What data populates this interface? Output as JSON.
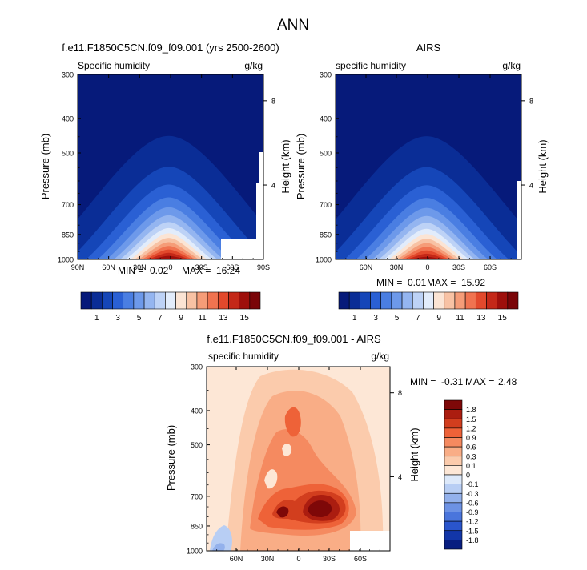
{
  "figure": {
    "title": "ANN"
  },
  "colors": {
    "absolute_scale": [
      "#061a7a",
      "#0a2d96",
      "#1546b8",
      "#2a60d4",
      "#4a7ee2",
      "#6d99ea",
      "#94b5f0",
      "#bdd2f6",
      "#e2ecfb",
      "#fbe4d4",
      "#f8c2a4",
      "#f59c78",
      "#f07350",
      "#e2492c",
      "#c42818",
      "#9e0f0b",
      "#7a0508"
    ],
    "difference_scale": [
      "#081e80",
      "#1236a8",
      "#2a55cc",
      "#4a75dc",
      "#6d92e4",
      "#93b1ec",
      "#b8cef4",
      "#dde9fa",
      "#fde7d6",
      "#fbcbac",
      "#f9ad86",
      "#f58a60",
      "#ee6238",
      "#d23e1e",
      "#ab1d10",
      "#7e0808"
    ]
  },
  "chart_data": [
    {
      "type": "heatmap",
      "title": "f.e11.F1850C5CN.f09_f09.001 (yrs 2500-2600)",
      "left_label": "Specific humidity",
      "units": "g/kg",
      "ylabel": "Pressure (mb)",
      "y2label": "Height (km)",
      "xticks": [
        "90N",
        "60N",
        "30N",
        "0",
        "30S",
        "60S",
        "90S"
      ],
      "yticks": [
        "300",
        "400",
        "500",
        "700",
        "850",
        "1000"
      ],
      "y2ticks": [
        "8",
        "4"
      ],
      "stats": {
        "min_label": "MIN =",
        "min": "0.02",
        "max_label": "MAX =",
        "max": "16.24"
      },
      "peak": 16.24,
      "colorbar": {
        "levels": [
          "1",
          "3",
          "5",
          "7",
          "9",
          "11",
          "13",
          "15"
        ]
      }
    },
    {
      "type": "heatmap",
      "title": "AIRS",
      "left_label": "specific humidity",
      "units": "g/kg",
      "ylabel": "Pressure (mb)",
      "y2label": "Height (km)",
      "xticks": [
        "60N",
        "30N",
        "0",
        "30S",
        "60S"
      ],
      "yticks": [
        "300",
        "400",
        "500",
        "700",
        "850",
        "1000"
      ],
      "y2ticks": [
        "8",
        "4"
      ],
      "stats": {
        "min_label": "MIN =",
        "min": "0.01",
        "max_label": "MAX =",
        "max": "15.92"
      },
      "peak": 15.92,
      "colorbar": {
        "levels": [
          "1",
          "3",
          "5",
          "7",
          "9",
          "11",
          "13",
          "15"
        ]
      }
    },
    {
      "type": "heatmap",
      "title": "f.e11.F1850C5CN.f09_f09.001 - AIRS",
      "left_label": "specific humidity",
      "units": "g/kg",
      "ylabel": "Pressure (mb)",
      "y2label": "Height (km)",
      "xticks": [
        "60N",
        "30N",
        "0",
        "30S",
        "60S"
      ],
      "yticks": [
        "300",
        "400",
        "500",
        "700",
        "850",
        "1000"
      ],
      "y2ticks": [
        "8",
        "4"
      ],
      "stats": {
        "min_label": "MIN =",
        "min": "-0.31",
        "max_label": "MAX =",
        "max": "2.48"
      },
      "colorbar": {
        "levels": [
          "1.8",
          "1.5",
          "1.2",
          "0.9",
          "0.6",
          "0.3",
          "0.1",
          "0",
          "-0.1",
          "-0.3",
          "-0.6",
          "-0.9",
          "-1.2",
          "-1.5",
          "-1.8"
        ]
      }
    }
  ]
}
